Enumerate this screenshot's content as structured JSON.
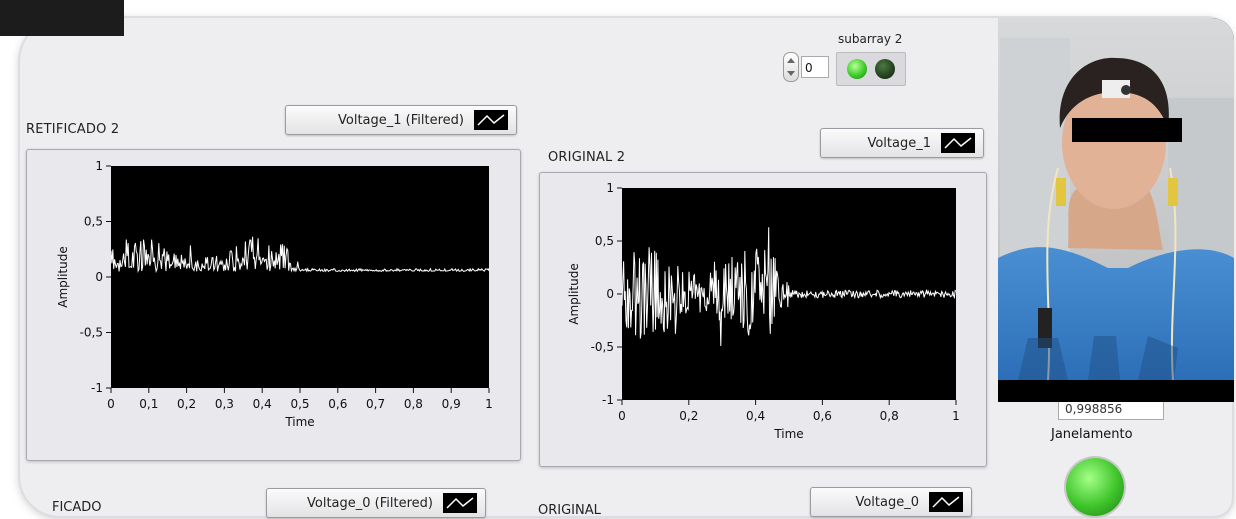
{
  "subarray": {
    "label": "subarray 2",
    "index_value": "0",
    "led_1": "on",
    "led_2": "off"
  },
  "graphs": {
    "retificado2": {
      "title": "RETIFICADO 2",
      "legend_label": "Voltage_1 (Filtered)",
      "y_axis_label": "Amplitude",
      "x_axis_label": "Time",
      "y_ticks": [
        "1",
        "0,5",
        "0",
        "-0,5",
        "-1"
      ],
      "x_ticks": [
        "0",
        "0,1",
        "0,2",
        "0,3",
        "0,4",
        "0,5",
        "0,6",
        "0,7",
        "0,8",
        "0,9",
        "1"
      ]
    },
    "original2": {
      "title": "ORIGINAL 2",
      "legend_label": "Voltage_1",
      "y_axis_label": "Amplitude",
      "x_axis_label": "Time",
      "y_ticks": [
        "1",
        "0,5",
        "0",
        "-0,5",
        "-1"
      ],
      "x_ticks": [
        "0",
        "0,2",
        "0,4",
        "0,6",
        "0,8",
        "1"
      ]
    },
    "retificado_bottom": {
      "title": "FICADO",
      "legend_label": "Voltage_0 (Filtered)"
    },
    "original_bottom": {
      "title": "ORIGINAL",
      "legend_label": "Voltage_0"
    }
  },
  "janelamento": {
    "readout": "0,998856",
    "label": "Janelamento",
    "led": "on"
  },
  "video": {
    "description_icon": "webcam-feed"
  },
  "colors": {
    "panel_bg": "#eeedf0",
    "plot_bg": "#000000",
    "trace": "#ffffff",
    "led_on": "#3ecb2a",
    "led_off": "#22401d"
  }
}
